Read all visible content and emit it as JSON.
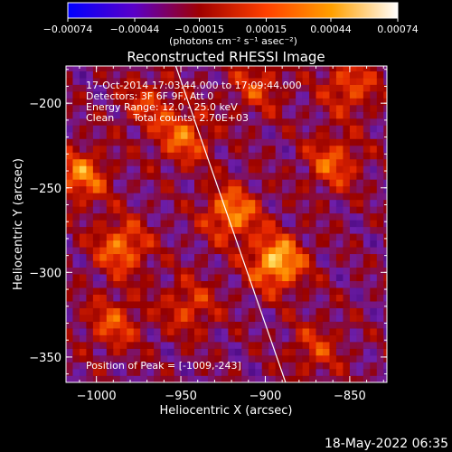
{
  "chart_data": {
    "type": "heatmap",
    "title": "Reconstructed RHESSI Image",
    "xlabel": "Heliocentric X (arcsec)",
    "ylabel": "Heliocentric Y (arcsec)",
    "xlim": [
      -1018,
      -828
    ],
    "ylim": [
      -365,
      -178
    ],
    "x_ticks": [
      -1000,
      -950,
      -900,
      -850
    ],
    "y_ticks": [
      -350,
      -300,
      -250,
      -200
    ],
    "x_tick_labels": [
      "−1000",
      "−950",
      "−900",
      "−850"
    ],
    "y_tick_labels": [
      "−350",
      "−300",
      "−250",
      "−200"
    ],
    "colorbar": {
      "min": -0.00074,
      "max": 0.00074,
      "ticks": [
        -0.00074,
        -0.00044,
        -0.00015,
        0.00015,
        0.00044,
        0.00074
      ],
      "tick_labels": [
        "−0.00074",
        "−0.00044",
        "−0.00015",
        "0.00015",
        "0.00044",
        "0.00074"
      ],
      "units": "(photons cm⁻² s⁻¹ asec⁻²)",
      "colormap": [
        "#0000ff",
        "#5a00c8",
        "#a00000",
        "#ff4000",
        "#ffa000",
        "#ffffff"
      ]
    },
    "annotations": [
      "17-Oct-2014 17:03:44.000 to 17:09:44.000",
      "Detectors: 3F 6F 9F, Att 0",
      "Energy Range: 12.0 - 25.0 keV",
      "Clean      Total counts: 2.70E+03"
    ],
    "peak_label": "Position of Peak = [-1009,-243]",
    "peak": {
      "x": -1009,
      "y": -243
    },
    "limb_line": {
      "x": [
        -953,
        -888
      ],
      "y": [
        -178,
        -365
      ]
    },
    "sources": [
      {
        "x": -893,
        "y": -294,
        "intensity": 0.0007
      },
      {
        "x": -920,
        "y": -265,
        "intensity": 0.00055
      },
      {
        "x": -985,
        "y": -285,
        "intensity": 0.0005
      },
      {
        "x": -948,
        "y": -220,
        "intensity": 0.00045
      },
      {
        "x": -860,
        "y": -235,
        "intensity": 0.00042
      },
      {
        "x": -850,
        "y": -190,
        "intensity": 0.0004
      },
      {
        "x": -1009,
        "y": -243,
        "intensity": 0.0005
      },
      {
        "x": -990,
        "y": -330,
        "intensity": 0.00038
      },
      {
        "x": -945,
        "y": -320,
        "intensity": 0.00035
      },
      {
        "x": -905,
        "y": -190,
        "intensity": 0.00032
      },
      {
        "x": -870,
        "y": -345,
        "intensity": 0.0003
      },
      {
        "x": -970,
        "y": -200,
        "intensity": 0.0003
      }
    ]
  },
  "footer": {
    "timestamp": "18-May-2022 06:35"
  }
}
